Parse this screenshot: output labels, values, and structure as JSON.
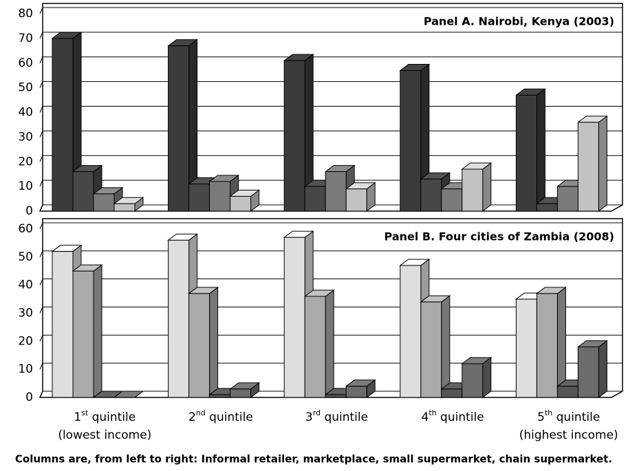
{
  "chart_data": [
    {
      "type": "bar3d",
      "title": "Panel A. Nairobi, Kenya (2003)",
      "categories": [
        "1st quintile\n(lowest income)",
        "2nd quintile",
        "3rd quintile",
        "4th quintile",
        "5th quintile\n(highest income)"
      ],
      "ylim": [
        0,
        80
      ],
      "yticks": [
        0,
        10,
        20,
        30,
        40,
        50,
        60,
        70,
        80
      ],
      "grid": true,
      "series": [
        {
          "color": "#3b3b3b",
          "values": [
            70,
            67,
            61,
            57,
            47
          ]
        },
        {
          "color": "#474747",
          "values": [
            16,
            11,
            10,
            13,
            3
          ]
        },
        {
          "color": "#7b7b7b",
          "values": [
            7,
            12,
            16,
            9,
            10
          ]
        },
        {
          "color": "#c2c2c2",
          "values": [
            3,
            6,
            9,
            17,
            36
          ]
        }
      ]
    },
    {
      "type": "bar3d",
      "title": "Panel B. Four cities of Zambia (2008)",
      "categories": [
        "1st quintile\n(lowest income)",
        "2nd quintile",
        "3rd quintile",
        "4th quintile",
        "5th quintile\n(highest income)"
      ],
      "ylim": [
        0,
        60
      ],
      "yticks": [
        0,
        10,
        20,
        30,
        40,
        50,
        60
      ],
      "grid": true,
      "series": [
        {
          "color": "#dedede",
          "values": [
            52,
            56,
            57,
            47,
            35
          ]
        },
        {
          "color": "#aaaaaa",
          "values": [
            45,
            37,
            36,
            34,
            37
          ]
        },
        {
          "color": "#555555",
          "values": [
            0,
            1,
            1,
            3,
            4
          ]
        },
        {
          "color": "#6c6c6c",
          "values": [
            0,
            3,
            4,
            12,
            18
          ]
        }
      ]
    }
  ],
  "caption": "Columns are, from left to right: Informal retailer, marketplace, small supermarket, chain supermarket."
}
